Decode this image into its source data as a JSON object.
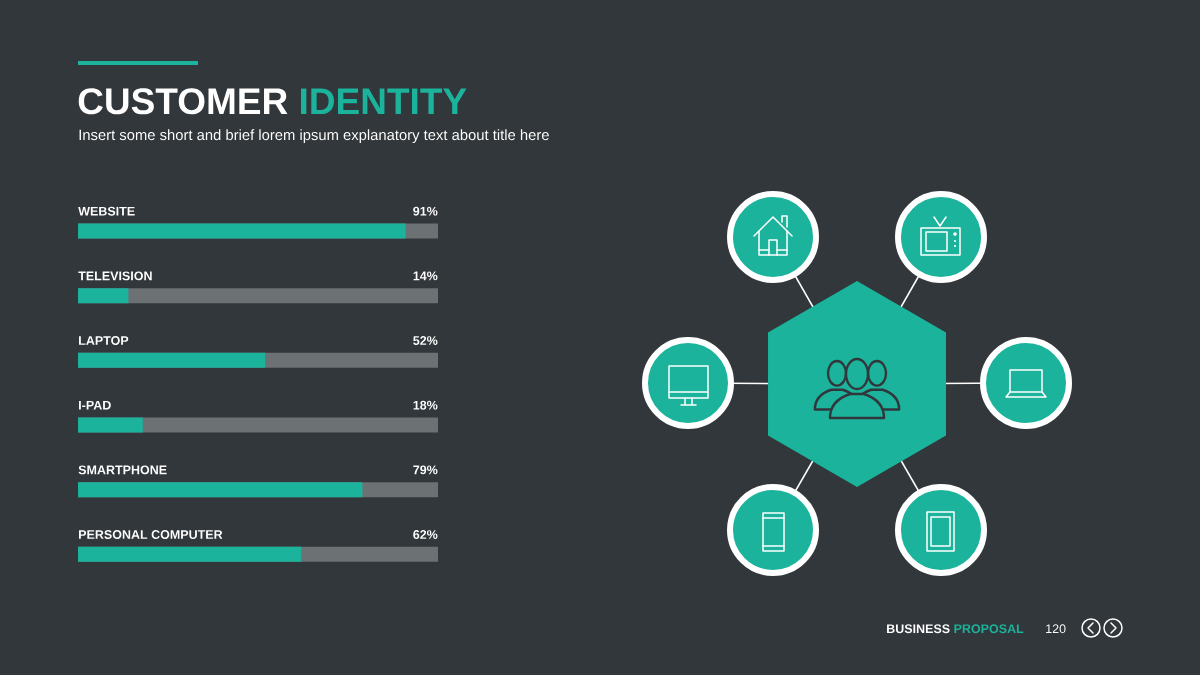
{
  "chart_data": {
    "type": "bar",
    "orientation": "horizontal",
    "title": "CUSTOMER IDENTITY",
    "subtitle": "Insert some short and brief lorem ipsum explanatory text about title here",
    "categories": [
      "WEBSITE",
      "TELEVISION",
      "LAPTOP",
      "I-PAD",
      "SMARTPHONE",
      "PERSONAL COMPUTER"
    ],
    "values": [
      91,
      14,
      52,
      18,
      79,
      62
    ],
    "value_labels": [
      "91%",
      "14%",
      "52%",
      "18%",
      "79%",
      "62%"
    ],
    "color": "#1bb39b",
    "xlim": [
      0,
      100
    ],
    "tick_labels": "y",
    "annotations": [
      "BUSINESS PROPOSAL",
      "120"
    ]
  }
}
